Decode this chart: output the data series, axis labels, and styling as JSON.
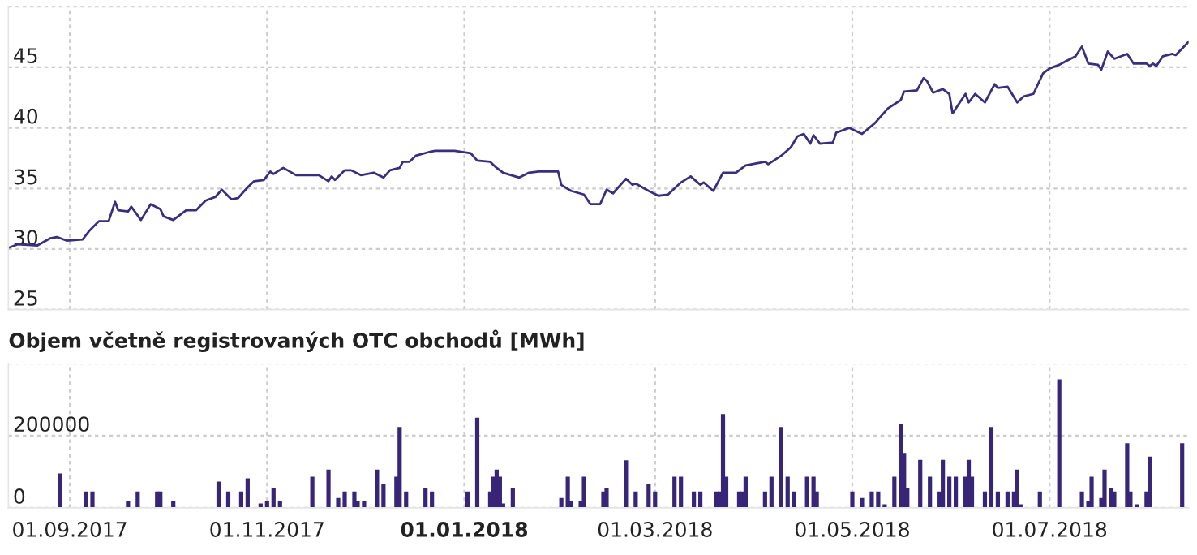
{
  "chart_data": [
    {
      "type": "line",
      "xlim": [
        "2017-08-13",
        "2018-08-13"
      ],
      "ylim": [
        25,
        50
      ],
      "yticks": [
        25,
        30,
        35,
        40,
        45,
        {
          "value": 50,
          "label": null
        }
      ],
      "xticks": [
        {
          "value": "2017-09-01",
          "label": null
        },
        {
          "value": "2017-11-01",
          "label": null
        },
        {
          "value": "2018-01-01",
          "label": null
        },
        {
          "value": "2018-03-01",
          "label": null
        },
        {
          "value": "2018-05-01",
          "label": null
        },
        {
          "value": "2018-07-01",
          "label": null
        }
      ],
      "tick_labels": "y",
      "grid": true,
      "color": "#3b2e7e",
      "x": [
        "2017-08-13",
        "2017-08-16",
        "2017-08-22",
        "2017-08-26",
        "2017-08-28",
        "2017-08-31",
        "2017-09-05",
        "2017-09-07",
        "2017-09-10",
        "2017-09-13",
        "2017-09-15",
        "2017-09-16",
        "2017-09-19",
        "2017-09-20",
        "2017-09-23",
        "2017-09-26",
        "2017-09-29",
        "2017-09-30",
        "2017-10-03",
        "2017-10-07",
        "2017-10-10",
        "2017-10-13",
        "2017-10-16",
        "2017-10-18",
        "2017-10-21",
        "2017-10-23",
        "2017-10-26",
        "2017-10-28",
        "2017-10-31",
        "2017-11-02",
        "2017-11-03",
        "2017-11-06",
        "2017-11-10",
        "2017-11-17",
        "2017-11-20",
        "2017-11-21",
        "2017-11-22",
        "2017-11-25",
        "2017-11-27",
        "2017-11-30",
        "2017-12-04",
        "2017-12-07",
        "2017-12-09",
        "2017-12-12",
        "2017-12-13",
        "2017-12-15",
        "2017-12-17",
        "2017-12-21",
        "2017-12-23",
        "2017-12-29",
        "2018-01-03",
        "2018-01-05",
        "2018-01-09",
        "2018-01-11",
        "2018-01-13",
        "2018-01-18",
        "2018-01-21",
        "2018-01-24",
        "2018-01-30",
        "2018-01-31",
        "2018-02-03",
        "2018-02-07",
        "2018-02-09",
        "2018-02-12",
        "2018-02-14",
        "2018-02-16",
        "2018-02-20",
        "2018-02-22",
        "2018-02-23",
        "2018-02-27",
        "2018-03-02",
        "2018-03-05",
        "2018-03-09",
        "2018-03-12",
        "2018-03-15",
        "2018-03-16",
        "2018-03-19",
        "2018-03-22",
        "2018-03-26",
        "2018-03-29",
        "2018-04-04",
        "2018-04-05",
        "2018-04-09",
        "2018-04-12",
        "2018-04-14",
        "2018-04-16",
        "2018-04-18",
        "2018-04-19",
        "2018-04-21",
        "2018-04-25",
        "2018-04-26",
        "2018-04-30",
        "2018-05-04",
        "2018-05-08",
        "2018-05-12",
        "2018-05-16",
        "2018-05-17",
        "2018-05-21",
        "2018-05-23",
        "2018-05-24",
        "2018-05-26",
        "2018-05-29",
        "2018-05-31",
        "2018-06-01",
        "2018-06-05",
        "2018-06-06",
        "2018-06-08",
        "2018-06-11",
        "2018-06-14",
        "2018-06-15",
        "2018-06-18",
        "2018-06-21",
        "2018-06-23",
        "2018-06-26",
        "2018-06-29",
        "2018-07-01",
        "2018-07-04",
        "2018-07-06",
        "2018-07-09",
        "2018-07-11",
        "2018-07-13",
        "2018-07-16",
        "2018-07-17",
        "2018-07-19",
        "2018-07-21",
        "2018-07-25",
        "2018-07-27",
        "2018-07-31",
        "2018-08-01",
        "2018-08-02",
        "2018-08-03",
        "2018-08-05",
        "2018-08-08",
        "2018-08-09",
        "2018-08-13"
      ],
      "values": [
        30.1,
        30.4,
        30.3,
        30.9,
        31.0,
        30.7,
        30.8,
        31.5,
        32.3,
        32.3,
        33.9,
        33.2,
        33.1,
        33.5,
        32.4,
        33.7,
        33.3,
        32.7,
        32.4,
        33.2,
        33.2,
        34.0,
        34.3,
        34.9,
        34.1,
        34.2,
        35.1,
        35.6,
        35.7,
        36.4,
        36.2,
        36.7,
        36.1,
        36.1,
        35.6,
        36.0,
        35.7,
        36.5,
        36.5,
        36.1,
        36.3,
        35.9,
        36.5,
        36.7,
        37.2,
        37.2,
        37.7,
        38.0,
        38.1,
        38.1,
        37.9,
        37.3,
        37.2,
        36.7,
        36.3,
        35.9,
        36.3,
        36.4,
        36.4,
        35.3,
        34.8,
        34.5,
        33.7,
        33.7,
        34.9,
        34.6,
        35.8,
        35.3,
        35.4,
        34.8,
        34.4,
        34.5,
        35.5,
        36.0,
        35.3,
        35.5,
        34.8,
        36.3,
        36.3,
        36.9,
        37.2,
        37.0,
        37.7,
        38.4,
        39.3,
        39.5,
        38.7,
        39.4,
        38.7,
        38.8,
        39.6,
        40.0,
        39.5,
        40.4,
        41.6,
        42.3,
        43.0,
        43.1,
        44.1,
        43.9,
        42.9,
        43.2,
        42.8,
        41.2,
        42.8,
        42.1,
        42.8,
        42.1,
        43.6,
        43.3,
        43.4,
        42.1,
        42.6,
        42.8,
        44.5,
        44.9,
        45.2,
        45.5,
        45.9,
        46.7,
        45.3,
        45.2,
        44.8,
        46.3,
        45.7,
        46.1,
        45.3,
        45.3,
        45.1,
        45.3,
        45.1,
        45.9,
        46.1,
        46.0,
        47.1
      ]
    },
    {
      "type": "bar",
      "title": "Objem včetně registrovaných OTC obchodů [MWh]",
      "xlim": [
        "2017-08-13",
        "2018-08-13"
      ],
      "ylim": [
        0,
        400000
      ],
      "yticks": [
        0,
        200000,
        {
          "value": 400000,
          "label": null
        }
      ],
      "xticks": [
        {
          "value": "2017-09-01",
          "label": "01.09.2017"
        },
        {
          "value": "2017-11-01",
          "label": "01.11.2017"
        },
        {
          "value": "2018-01-01",
          "label": "01.01.2018"
        },
        {
          "value": "2018-03-01",
          "label": "01.03.2018"
        },
        {
          "value": "2018-05-01",
          "label": "01.05.2018"
        },
        {
          "value": "2018-07-01",
          "label": "01.07.2018"
        }
      ],
      "grid": true,
      "color": "#372677",
      "x": [
        "2017-08-29",
        "2017-09-06",
        "2017-09-08",
        "2017-09-19",
        "2017-09-22",
        "2017-09-28",
        "2017-09-29",
        "2017-10-03",
        "2017-10-17",
        "2017-10-20",
        "2017-10-24",
        "2017-10-26",
        "2017-10-30",
        "2017-11-01",
        "2017-11-03",
        "2017-11-05",
        "2017-11-15",
        "2017-11-20",
        "2017-11-23",
        "2017-11-25",
        "2017-11-28",
        "2017-11-29",
        "2017-12-01",
        "2017-12-05",
        "2017-12-07",
        "2017-12-11",
        "2017-12-12",
        "2017-12-14",
        "2017-12-20",
        "2017-12-22",
        "2018-01-02",
        "2018-01-05",
        "2018-01-09",
        "2018-01-10",
        "2018-01-11",
        "2018-01-12",
        "2018-01-13",
        "2018-01-16",
        "2018-01-31",
        "2018-02-02",
        "2018-02-03",
        "2018-02-06",
        "2018-02-07",
        "2018-02-13",
        "2018-02-14",
        "2018-02-20",
        "2018-02-23",
        "2018-02-27",
        "2018-03-01",
        "2018-03-07",
        "2018-03-09",
        "2018-03-13",
        "2018-03-15",
        "2018-03-20",
        "2018-03-21",
        "2018-03-22",
        "2018-03-23",
        "2018-03-27",
        "2018-03-28",
        "2018-03-29",
        "2018-04-04",
        "2018-04-06",
        "2018-04-09",
        "2018-04-11",
        "2018-04-13",
        "2018-04-17",
        "2018-04-19",
        "2018-04-20",
        "2018-05-01",
        "2018-05-04",
        "2018-05-07",
        "2018-05-09",
        "2018-05-11",
        "2018-05-14",
        "2018-05-16",
        "2018-05-17",
        "2018-05-18",
        "2018-05-22",
        "2018-05-25",
        "2018-05-28",
        "2018-05-29",
        "2018-05-31",
        "2018-06-02",
        "2018-06-05",
        "2018-06-06",
        "2018-06-07",
        "2018-06-11",
        "2018-06-13",
        "2018-06-15",
        "2018-06-18",
        "2018-06-20",
        "2018-06-21",
        "2018-06-22",
        "2018-06-28",
        "2018-07-04",
        "2018-07-11",
        "2018-07-13",
        "2018-07-14",
        "2018-07-17",
        "2018-07-18",
        "2018-07-20",
        "2018-07-21",
        "2018-07-25",
        "2018-07-26",
        "2018-07-28",
        "2018-07-31",
        "2018-08-01",
        "2018-08-11"
      ],
      "values": [
        95000,
        45000,
        45000,
        20000,
        45000,
        45000,
        45000,
        20000,
        73000,
        45000,
        45000,
        82000,
        12000,
        20000,
        55000,
        20000,
        86000,
        106000,
        27000,
        45000,
        45000,
        20000,
        20000,
        106000,
        65000,
        86000,
        224000,
        45000,
        55000,
        45000,
        45000,
        250000,
        45000,
        86000,
        106000,
        86000,
        12000,
        55000,
        27000,
        86000,
        20000,
        20000,
        86000,
        45000,
        56000,
        132000,
        45000,
        65000,
        45000,
        86000,
        86000,
        45000,
        45000,
        45000,
        45000,
        260000,
        86000,
        45000,
        45000,
        86000,
        45000,
        86000,
        224000,
        86000,
        45000,
        86000,
        86000,
        45000,
        45000,
        27000,
        45000,
        45000,
        10000,
        86000,
        233000,
        152000,
        56000,
        133000,
        86000,
        45000,
        133000,
        86000,
        86000,
        86000,
        133000,
        86000,
        45000,
        224000,
        45000,
        45000,
        45000,
        106000,
        10000,
        45000,
        356000,
        45000,
        20000,
        86000,
        27000,
        106000,
        56000,
        45000,
        179000,
        45000,
        10000,
        45000,
        142000,
        179000
      ]
    }
  ]
}
